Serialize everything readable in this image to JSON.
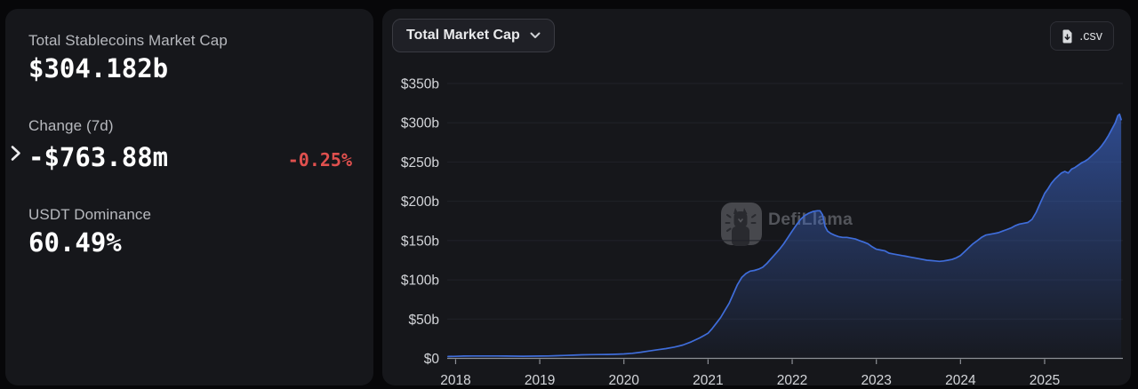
{
  "left_panel": {
    "market_cap": {
      "label": "Total Stablecoins Market Cap",
      "value": "$304.182b"
    },
    "change_7d": {
      "label": "Change (7d)",
      "value": "-$763.88m",
      "percent": "-0.25%"
    },
    "usdt_dominance": {
      "label": "USDT Dominance",
      "value": "60.49%"
    }
  },
  "chart_panel": {
    "dropdown_label": "Total Market Cap",
    "csv_button_label": ".csv",
    "watermark_text": "DefiLlama"
  },
  "colors": {
    "negative_red": "#e0504e",
    "line_blue": "#3f6dda",
    "axis_gray": "#8d9096",
    "grid_gray": "#202229",
    "tick_label": "#d3d5d9"
  },
  "chart_data": {
    "type": "area",
    "title": "Total Market Cap",
    "xlabel": "",
    "ylabel": "",
    "grid": true,
    "legend": false,
    "ylim": [
      0,
      350
    ],
    "xlim": [
      2017.9,
      2025.93
    ],
    "x_ticks": {
      "values": [
        2018,
        2019,
        2020,
        2021,
        2022,
        2023,
        2024,
        2025
      ],
      "labels": [
        "2018",
        "2019",
        "2020",
        "2021",
        "2022",
        "2023",
        "2024",
        "2025"
      ]
    },
    "y_ticks": {
      "values": [
        0,
        50,
        100,
        150,
        200,
        250,
        300,
        350
      ],
      "labels": [
        "$0",
        "$50b",
        "$100b",
        "$150b",
        "$200b",
        "$250b",
        "$300b",
        "$350b"
      ]
    },
    "series": [
      {
        "name": "Total Stablecoins Market Cap ($b)",
        "x": [
          2017.91,
          2018.0,
          2018.1,
          2018.2,
          2018.3,
          2018.4,
          2018.5,
          2018.6,
          2018.7,
          2018.8,
          2018.9,
          2019.0,
          2019.1,
          2019.2,
          2019.3,
          2019.4,
          2019.5,
          2019.6,
          2019.7,
          2019.8,
          2019.9,
          2020.0,
          2020.1,
          2020.2,
          2020.3,
          2020.4,
          2020.5,
          2020.6,
          2020.7,
          2020.8,
          2020.9,
          2020.95,
          2021.0,
          2021.05,
          2021.1,
          2021.15,
          2021.2,
          2021.25,
          2021.3,
          2021.35,
          2021.4,
          2021.45,
          2021.5,
          2021.55,
          2021.6,
          2021.65,
          2021.7,
          2021.75,
          2021.8,
          2021.85,
          2021.9,
          2021.95,
          2022.0,
          2022.05,
          2022.1,
          2022.15,
          2022.2,
          2022.25,
          2022.3,
          2022.33,
          2022.36,
          2022.39,
          2022.42,
          2022.46,
          2022.5,
          2022.55,
          2022.6,
          2022.65,
          2022.7,
          2022.75,
          2022.8,
          2022.85,
          2022.9,
          2022.95,
          2023.0,
          2023.05,
          2023.1,
          2023.15,
          2023.2,
          2023.25,
          2023.3,
          2023.35,
          2023.4,
          2023.45,
          2023.5,
          2023.55,
          2023.6,
          2023.65,
          2023.7,
          2023.75,
          2023.8,
          2023.85,
          2023.9,
          2023.95,
          2024.0,
          2024.05,
          2024.1,
          2024.15,
          2024.2,
          2024.25,
          2024.3,
          2024.35,
          2024.4,
          2024.45,
          2024.5,
          2024.55,
          2024.6,
          2024.65,
          2024.7,
          2024.75,
          2024.8,
          2024.85,
          2024.9,
          2024.95,
          2025.0,
          2025.04,
          2025.08,
          2025.12,
          2025.16,
          2025.2,
          2025.24,
          2025.28,
          2025.32,
          2025.36,
          2025.4,
          2025.44,
          2025.48,
          2025.52,
          2025.56,
          2025.6,
          2025.64,
          2025.68,
          2025.72,
          2025.76,
          2025.8,
          2025.84,
          2025.87,
          2025.89,
          2025.91
        ],
        "values": [
          2.4,
          2.6,
          2.9,
          3.1,
          3.1,
          3.0,
          3.0,
          2.9,
          2.8,
          2.7,
          2.8,
          2.9,
          3.1,
          3.4,
          3.7,
          4.1,
          4.5,
          4.7,
          4.9,
          5.0,
          5.2,
          5.6,
          6.4,
          7.8,
          9.4,
          11.0,
          12.4,
          14.4,
          17.0,
          21.0,
          26.0,
          29.0,
          32.0,
          38.0,
          45.0,
          52.0,
          61.0,
          70.0,
          82.0,
          94.0,
          103.0,
          108.0,
          111.0,
          112.0,
          113.5,
          116.0,
          121.0,
          127.0,
          133.0,
          139.0,
          146.0,
          154.0,
          162.0,
          170.0,
          177.0,
          182.0,
          185.0,
          187.0,
          188.0,
          188.0,
          183.0,
          168.0,
          162.0,
          159.0,
          157.0,
          155.0,
          154.0,
          154.0,
          153.0,
          152.0,
          150.0,
          148.0,
          146.0,
          142.0,
          139.0,
          138.0,
          137.0,
          134.0,
          133.0,
          132.0,
          131.0,
          130.0,
          129.0,
          128.0,
          127.0,
          126.0,
          125.0,
          124.5,
          124.0,
          123.5,
          124.0,
          125.0,
          126.0,
          128.0,
          131.0,
          136.0,
          141.0,
          146.0,
          150.0,
          154.0,
          157.0,
          158.0,
          159.0,
          160.0,
          162.0,
          164.0,
          166.0,
          169.0,
          171.0,
          172.0,
          173.0,
          177.0,
          186.0,
          198.0,
          210.0,
          216.0,
          223.0,
          228.0,
          232.0,
          236.0,
          238.0,
          236.0,
          241.0,
          243.0,
          246.0,
          249.0,
          251.0,
          254.0,
          258.0,
          262.0,
          266.0,
          271.0,
          277.0,
          284.0,
          292.0,
          300.0,
          309.0,
          311.0,
          304.0
        ]
      }
    ]
  }
}
